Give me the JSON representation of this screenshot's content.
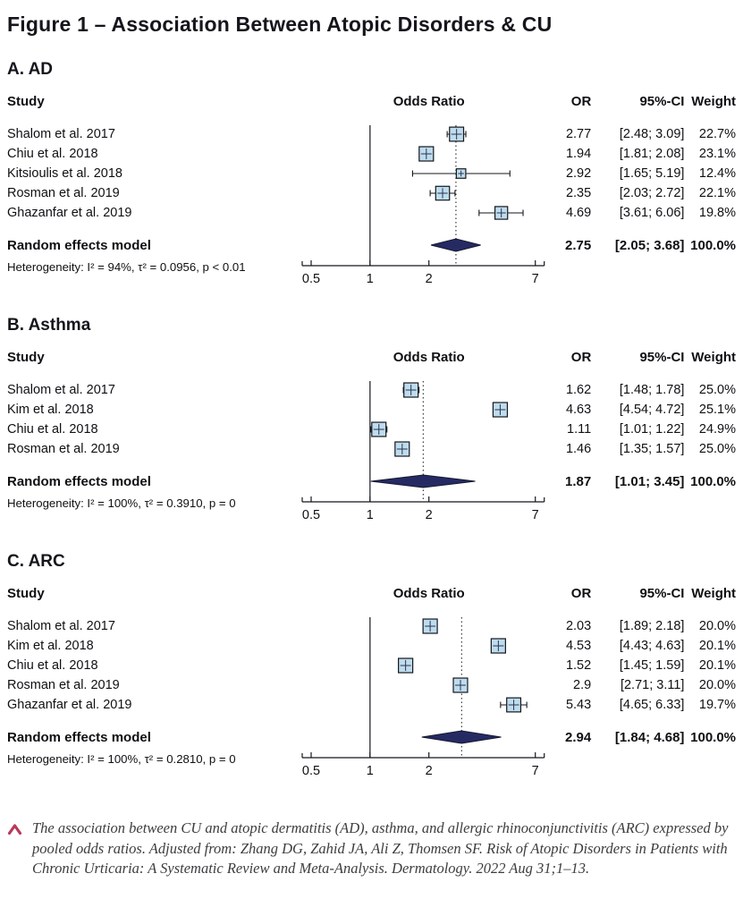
{
  "title": "Figure 1 – Association Between Atopic Disorders & CU",
  "columns": {
    "study": "Study",
    "plot": "Odds Ratio",
    "or": "OR",
    "ci": "95%-CI",
    "weight": "Weight"
  },
  "chart_data": [
    {
      "type": "forest",
      "panel": "A. AD",
      "xscale": "log",
      "xticks": [
        0.5,
        1,
        2,
        7
      ],
      "xrange": [
        0.5,
        7
      ],
      "studies": [
        {
          "name": "Shalom et al. 2017",
          "or": 2.77,
          "ci": [
            2.48,
            3.09
          ],
          "or_label": "2.77",
          "ci_label": "[2.48; 3.09]",
          "weight": "22.7%"
        },
        {
          "name": "Chiu et al. 2018",
          "or": 1.94,
          "ci": [
            1.81,
            2.08
          ],
          "or_label": "1.94",
          "ci_label": "[1.81; 2.08]",
          "weight": "23.1%"
        },
        {
          "name": "Kitsioulis et al. 2018",
          "or": 2.92,
          "ci": [
            1.65,
            5.19
          ],
          "or_label": "2.92",
          "ci_label": "[1.65; 5.19]",
          "weight": "12.4%"
        },
        {
          "name": "Rosman et al. 2019",
          "or": 2.35,
          "ci": [
            2.03,
            2.72
          ],
          "or_label": "2.35",
          "ci_label": "[2.03; 2.72]",
          "weight": "22.1%"
        },
        {
          "name": "Ghazanfar et al. 2019",
          "or": 4.69,
          "ci": [
            3.61,
            6.06
          ],
          "or_label": "4.69",
          "ci_label": "[3.61; 6.06]",
          "weight": "19.8%"
        }
      ],
      "pooled": {
        "name": "Random effects model",
        "or": 2.75,
        "ci": [
          2.05,
          3.68
        ],
        "or_label": "2.75",
        "ci_label": "[2.05; 3.68]",
        "weight": "100.0%"
      },
      "heterogeneity": "Heterogeneity: I² = 94%, τ² = 0.0956, p < 0.01"
    },
    {
      "type": "forest",
      "panel": "B. Asthma",
      "xscale": "log",
      "xticks": [
        0.5,
        1,
        2,
        7
      ],
      "xrange": [
        0.5,
        7
      ],
      "studies": [
        {
          "name": "Shalom et al. 2017",
          "or": 1.62,
          "ci": [
            1.48,
            1.78
          ],
          "or_label": "1.62",
          "ci_label": "[1.48; 1.78]",
          "weight": "25.0%"
        },
        {
          "name": "Kim et al. 2018",
          "or": 4.63,
          "ci": [
            4.54,
            4.72
          ],
          "or_label": "4.63",
          "ci_label": "[4.54; 4.72]",
          "weight": "25.1%"
        },
        {
          "name": "Chiu et al. 2018",
          "or": 1.11,
          "ci": [
            1.01,
            1.22
          ],
          "or_label": "1.11",
          "ci_label": "[1.01; 1.22]",
          "weight": "24.9%"
        },
        {
          "name": "Rosman et al. 2019",
          "or": 1.46,
          "ci": [
            1.35,
            1.57
          ],
          "or_label": "1.46",
          "ci_label": "[1.35; 1.57]",
          "weight": "25.0%"
        }
      ],
      "pooled": {
        "name": "Random effects model",
        "or": 1.87,
        "ci": [
          1.01,
          3.45
        ],
        "or_label": "1.87",
        "ci_label": "[1.01; 3.45]",
        "weight": "100.0%"
      },
      "heterogeneity": "Heterogeneity: I² = 100%, τ² = 0.3910, p = 0"
    },
    {
      "type": "forest",
      "panel": "C. ARC",
      "xscale": "log",
      "xticks": [
        0.5,
        1,
        2,
        7
      ],
      "xrange": [
        0.5,
        7
      ],
      "studies": [
        {
          "name": "Shalom et al. 2017",
          "or": 2.03,
          "ci": [
            1.89,
            2.18
          ],
          "or_label": "2.03",
          "ci_label": "[1.89; 2.18]",
          "weight": "20.0%"
        },
        {
          "name": "Kim et al. 2018",
          "or": 4.53,
          "ci": [
            4.43,
            4.63
          ],
          "or_label": "4.53",
          "ci_label": "[4.43; 4.63]",
          "weight": "20.1%"
        },
        {
          "name": "Chiu et al. 2018",
          "or": 1.52,
          "ci": [
            1.45,
            1.59
          ],
          "or_label": "1.52",
          "ci_label": "[1.45; 1.59]",
          "weight": "20.1%"
        },
        {
          "name": "Rosman et al. 2019",
          "or": 2.9,
          "ci": [
            2.71,
            3.11
          ],
          "or_label": "2.9",
          "ci_label": "[2.71; 3.11]",
          "weight": "20.0%"
        },
        {
          "name": "Ghazanfar et al. 2019",
          "or": 5.43,
          "ci": [
            4.65,
            6.33
          ],
          "or_label": "5.43",
          "ci_label": "[4.65; 6.33]",
          "weight": "19.7%"
        }
      ],
      "pooled": {
        "name": "Random effects model",
        "or": 2.94,
        "ci": [
          1.84,
          4.68
        ],
        "or_label": "2.94",
        "ci_label": "[1.84; 4.68]",
        "weight": "100.0%"
      },
      "heterogeneity": "Heterogeneity: I² = 100%, τ² = 0.2810, p = 0"
    }
  ],
  "caption": {
    "marker": "caret-up",
    "marker_color": "#b9395c",
    "text": "The association between CU and atopic dermatitis (AD), asthma, and allergic rhinoconjunctivitis (ARC) expressed by pooled odds ratios. Adjusted from: Zhang DG, Zahid JA, Ali Z, Thomsen SF. Risk of Atopic Disorders in Patients with Chronic Urticaria: A Systematic Review and Meta-Analysis. Dermatology. 2022 Aug 31;1–13."
  },
  "style": {
    "square_fill": "#bedced",
    "square_stroke": "#14161c",
    "diamond_fill": "#262a63",
    "line_color": "#14161c"
  }
}
